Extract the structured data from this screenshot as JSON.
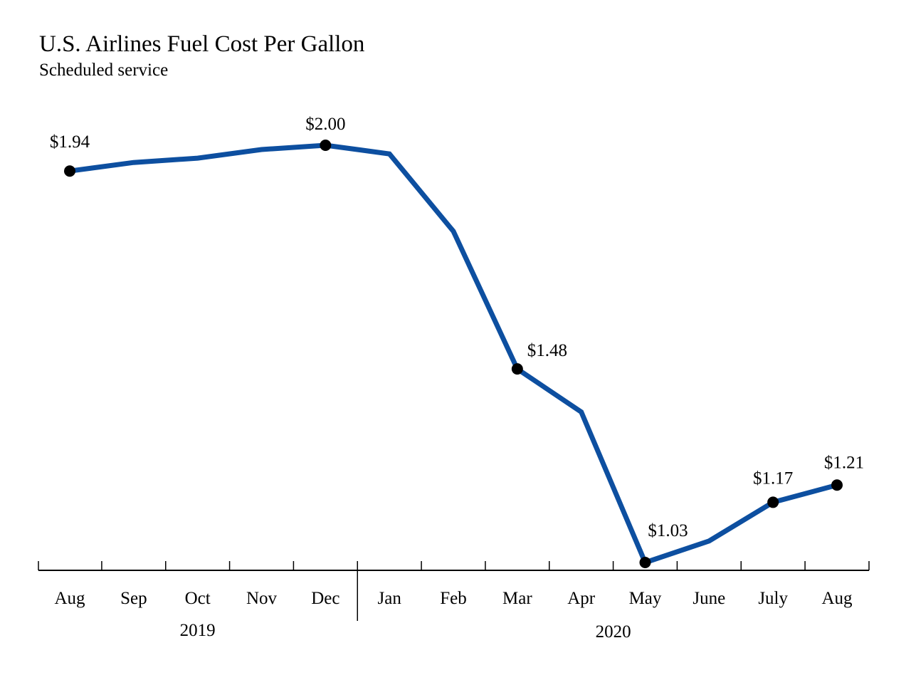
{
  "chart_data": {
    "type": "line",
    "title": "U.S. Airlines Fuel Cost Per Gallon",
    "subtitle": "Scheduled service",
    "categories": [
      "Aug",
      "Sep",
      "Oct",
      "Nov",
      "Dec",
      "Jan",
      "Feb",
      "Mar",
      "Apr",
      "May",
      "June",
      "July",
      "Aug"
    ],
    "year_groups": [
      {
        "label": "2019",
        "start": 0,
        "end": 4
      },
      {
        "label": "2020",
        "start": 5,
        "end": 12
      }
    ],
    "series": [
      {
        "values": [
          1.94,
          1.96,
          1.97,
          1.99,
          2.0,
          1.98,
          1.8,
          1.48,
          1.38,
          1.03,
          1.08,
          1.17,
          1.21
        ]
      }
    ],
    "labels": [
      {
        "index": 0,
        "text": "$1.94"
      },
      {
        "index": 4,
        "text": "$2.00"
      },
      {
        "index": 7,
        "text": "$1.48"
      },
      {
        "index": 9,
        "text": "$1.03"
      },
      {
        "index": 11,
        "text": "$1.17"
      },
      {
        "index": 12,
        "text": "$1.21"
      }
    ],
    "xlabel": "",
    "ylabel": "",
    "ylim": [
      1.03,
      2.0
    ],
    "grid": false,
    "line_color": "#0D4FA0",
    "marker_color": "#000000"
  }
}
